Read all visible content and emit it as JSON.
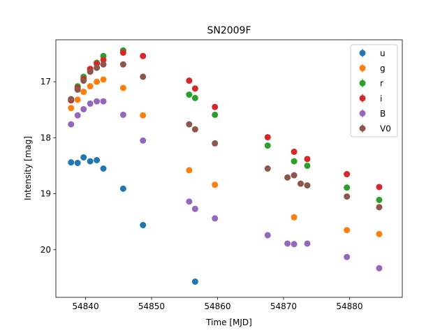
{
  "chart_data": {
    "type": "scatter",
    "title": "SN2009F",
    "xlabel": "Time [MJD]",
    "ylabel": "Intensity [mag]",
    "xlim": [
      54835.5,
      54888.0
    ],
    "ylim": [
      20.85,
      16.25
    ],
    "y_inverted": true,
    "grid": false,
    "legend_position": "top-right",
    "x_ticks": [
      54840,
      54850,
      54860,
      54870,
      54880
    ],
    "y_ticks": [
      17,
      18,
      19,
      20
    ],
    "series": [
      {
        "name": "u",
        "color": "#1f77b4",
        "points": [
          [
            54837.8,
            18.44
          ],
          [
            54838.8,
            18.45
          ],
          [
            54839.7,
            18.35
          ],
          [
            54840.7,
            18.42
          ],
          [
            54841.7,
            18.4
          ],
          [
            54842.7,
            18.55
          ],
          [
            54845.7,
            18.91
          ],
          [
            54848.7,
            19.56
          ],
          [
            54856.6,
            20.57
          ]
        ]
      },
      {
        "name": "g",
        "color": "#ff7f0e",
        "points": [
          [
            54837.8,
            17.47
          ],
          [
            54838.8,
            17.32
          ],
          [
            54839.7,
            17.18
          ],
          [
            54840.7,
            17.08
          ],
          [
            54841.7,
            17.0
          ],
          [
            54842.7,
            16.96
          ],
          [
            54845.7,
            17.11
          ],
          [
            54848.7,
            17.6
          ],
          [
            54855.7,
            18.58
          ],
          [
            54859.6,
            18.84
          ],
          [
            54871.6,
            19.42
          ],
          [
            54879.6,
            19.65
          ],
          [
            54884.5,
            19.72
          ]
        ]
      },
      {
        "name": "r",
        "color": "#2ca02c",
        "points": [
          [
            54837.8,
            17.33
          ],
          [
            54838.8,
            17.08
          ],
          [
            54839.7,
            16.91
          ],
          [
            54840.7,
            16.78
          ],
          [
            54841.7,
            16.66
          ],
          [
            54842.7,
            16.54
          ],
          [
            54845.7,
            16.44
          ],
          [
            54855.7,
            17.23
          ],
          [
            54856.6,
            17.29
          ],
          [
            54859.6,
            17.59
          ],
          [
            54867.6,
            18.14
          ],
          [
            54871.6,
            18.42
          ],
          [
            54873.6,
            18.5
          ],
          [
            54879.6,
            18.89
          ],
          [
            54884.5,
            19.11
          ]
        ]
      },
      {
        "name": "i",
        "color": "#d62728",
        "points": [
          [
            54837.8,
            17.33
          ],
          [
            54838.8,
            17.11
          ],
          [
            54839.7,
            16.95
          ],
          [
            54840.7,
            16.77
          ],
          [
            54841.7,
            16.68
          ],
          [
            54842.7,
            16.61
          ],
          [
            54845.7,
            16.48
          ],
          [
            54848.7,
            16.54
          ],
          [
            54855.7,
            16.98
          ],
          [
            54856.6,
            17.12
          ],
          [
            54859.6,
            17.45
          ],
          [
            54867.6,
            17.99
          ],
          [
            54871.6,
            18.25
          ],
          [
            54873.6,
            18.38
          ],
          [
            54879.6,
            18.65
          ],
          [
            54884.5,
            18.88
          ]
        ]
      },
      {
        "name": "B",
        "color": "#9467bd",
        "points": [
          [
            54837.8,
            17.76
          ],
          [
            54838.8,
            17.6
          ],
          [
            54839.7,
            17.49
          ],
          [
            54840.7,
            17.39
          ],
          [
            54841.7,
            17.35
          ],
          [
            54842.7,
            17.35
          ],
          [
            54845.7,
            17.59
          ],
          [
            54848.7,
            18.05
          ],
          [
            54855.7,
            19.14
          ],
          [
            54856.6,
            19.27
          ],
          [
            54859.6,
            19.44
          ],
          [
            54867.6,
            19.74
          ],
          [
            54870.6,
            19.89
          ],
          [
            54871.6,
            19.9
          ],
          [
            54873.6,
            19.89
          ],
          [
            54879.6,
            20.13
          ],
          [
            54884.5,
            20.33
          ]
        ]
      },
      {
        "name": "V0",
        "color": "#8c564b",
        "points": [
          [
            54837.8,
            17.31
          ],
          [
            54838.8,
            17.14
          ],
          [
            54839.7,
            16.98
          ],
          [
            54840.7,
            16.82
          ],
          [
            54841.7,
            16.75
          ],
          [
            54842.7,
            16.69
          ],
          [
            54845.7,
            16.69
          ],
          [
            54848.7,
            16.91
          ],
          [
            54855.7,
            17.76
          ],
          [
            54856.6,
            17.85
          ],
          [
            54859.6,
            18.1
          ],
          [
            54867.6,
            18.55
          ],
          [
            54870.6,
            18.71
          ],
          [
            54871.6,
            18.67
          ],
          [
            54872.6,
            18.82
          ],
          [
            54873.6,
            18.85
          ],
          [
            54879.6,
            19.05
          ],
          [
            54884.5,
            19.24
          ]
        ]
      }
    ]
  }
}
